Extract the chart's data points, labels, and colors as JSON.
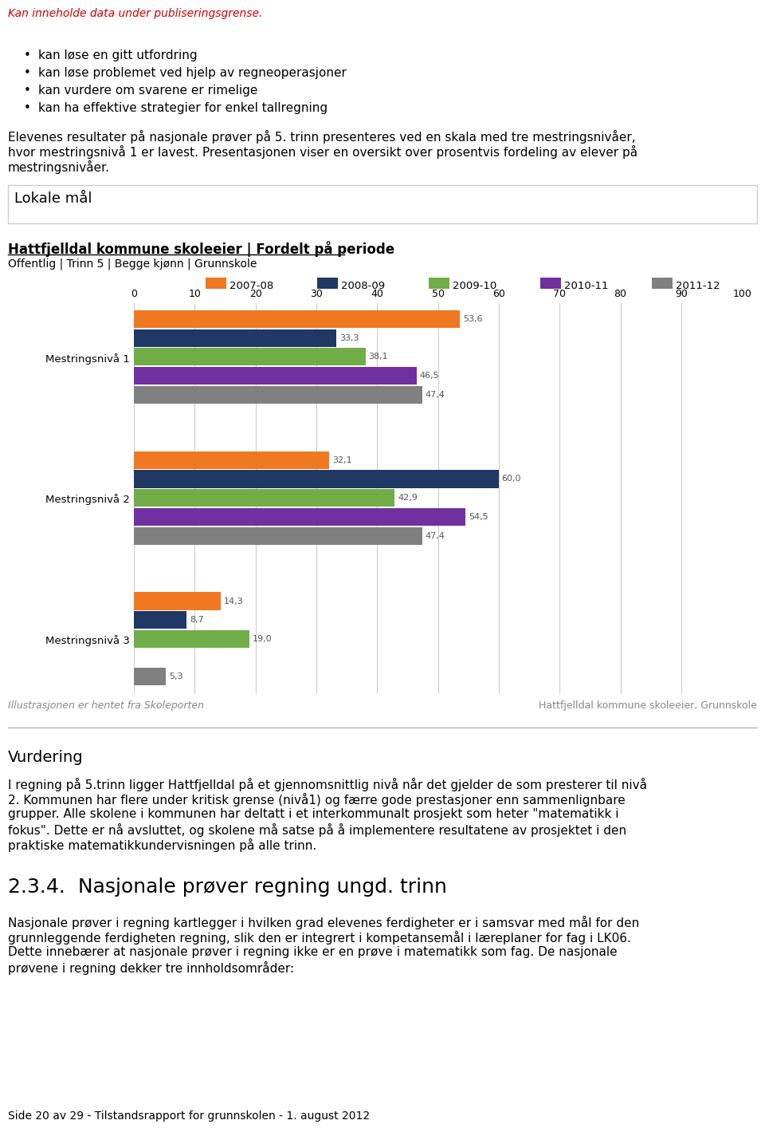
{
  "page_title_red": "Kan inneholde data under publiseringsgrense.",
  "bullet_points": [
    "kan løse en gitt utfordring",
    "kan løse problemet ved hjelp av regneoperasjoner",
    "kan vurdere om svarene er rimelige",
    "kan ha effektive strategier for enkel tallregning"
  ],
  "p1_lines": [
    "Elevenes resultater på nasjonale prøver på 5. trinn presenteres ved en skala med tre mestringsnivåer,",
    "hvor mestringsnivå 1 er lavest. Presentasjonen viser en oversikt over prosentvis fordeling av elever på",
    "mestringsnivåer."
  ],
  "section_box_title": "Lokale mål",
  "chart_title": "Hattfjelldal kommune skoleeier | Fordelt på periode",
  "chart_subtitle": "Offentlig | Trinn 5 | Begge kjønn | Grunnskole",
  "legend_labels": [
    "2007-08",
    "2008-09",
    "2009-10",
    "2010-11",
    "2011-12"
  ],
  "legend_colors": [
    "#F07820",
    "#1F3864",
    "#70AD47",
    "#7030A0",
    "#808080"
  ],
  "categories": [
    "Mestringsnivå 1",
    "Mestringsnivå 2",
    "Mestringsnivå 3"
  ],
  "bar_data": {
    "2007-08": [
      53.6,
      32.1,
      14.3
    ],
    "2008-09": [
      33.3,
      60.0,
      8.7
    ],
    "2009-10": [
      38.1,
      42.9,
      19.0
    ],
    "2010-11": [
      46.5,
      54.5,
      0.0
    ],
    "2011-12": [
      47.4,
      47.4,
      5.3
    ]
  },
  "xticks": [
    0,
    10,
    20,
    30,
    40,
    50,
    60,
    70,
    80,
    90,
    100
  ],
  "chart_source_right": "Hattfjelldal kommune skoleeier, Grunnskole",
  "chart_source_left": "Illustrasjonen er hentet fra Skoleporten",
  "vurdering_title": "Vurdering",
  "vurdering_lines": [
    "I regning på 5.trinn ligger Hattfjelldal på et gjennomsnittlig nivå når det gjelder de som presterer til nivå",
    "2. Kommunen har flere under kritisk grense (nivå1) og færre gode prestasjoner enn sammenlignbare",
    "grupper. Alle skolene i kommunen har deltatt i et interkommunalt prosjekt som heter \"matematikk i",
    "fokus\". Dette er nå avsluttet, og skolene må satse på å implementere resultatene av prosjektet i den",
    "praktiske matematikkundervisningen på alle trinn."
  ],
  "section234_title": "2.3.4.  Nasjonale prøver regning ungd. trinn",
  "section234_lines": [
    "Nasjonale prøver i regning kartlegger i hvilken grad elevenes ferdigheter er i samsvar med mål for den",
    "grunnleggende ferdigheten regning, slik den er integrert i kompetansemål i læreplaner for fag i LK06.",
    "Dette innebærer at nasjonale prøver i regning ikke er en prøve i matematikk som fag. De nasjonale",
    "prøvene i regning dekker tre innholdsområder:"
  ],
  "footer_text": "Side 20 av 29 - Tilstandsrapport for grunnskolen - 1. august 2012",
  "bg_color": "#ffffff",
  "grid_color": "#cccccc"
}
